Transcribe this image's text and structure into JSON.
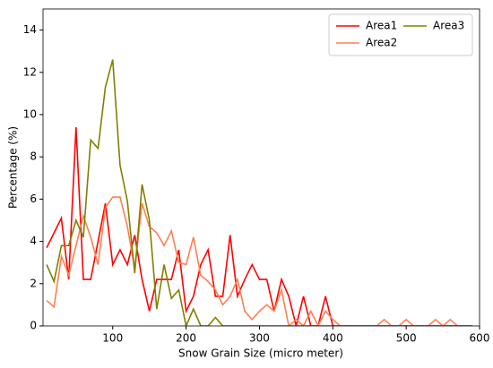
{
  "chart_data": {
    "type": "line",
    "xlabel": "Snow Grain Size (micro meter)",
    "ylabel": "Percentage (%)",
    "x": [
      10,
      20,
      30,
      40,
      50,
      60,
      70,
      80,
      90,
      100,
      110,
      120,
      130,
      140,
      150,
      160,
      170,
      180,
      190,
      200,
      210,
      220,
      230,
      240,
      250,
      260,
      270,
      280,
      290,
      300,
      310,
      320,
      330,
      340,
      350,
      360,
      370,
      380,
      390,
      400,
      410,
      420,
      430,
      440,
      450,
      460,
      470,
      480,
      490,
      500,
      510,
      520,
      530,
      540,
      550,
      560,
      570,
      580,
      590
    ],
    "series": [
      {
        "name": "Area1",
        "color": "#ff0000",
        "values": [
          3.7,
          4.4,
          5.1,
          2.2,
          9.4,
          2.2,
          2.2,
          4.0,
          5.8,
          2.9,
          3.6,
          2.9,
          4.3,
          2.2,
          0.7,
          2.2,
          2.2,
          2.2,
          3.6,
          0.7,
          1.4,
          2.9,
          3.6,
          1.4,
          1.4,
          4.3,
          1.4,
          2.2,
          2.9,
          2.2,
          2.2,
          0.7,
          2.2,
          1.4,
          0,
          1.4,
          0,
          0,
          1.4,
          0,
          0,
          0,
          0,
          0,
          0,
          0,
          0,
          0,
          0,
          0,
          0,
          0,
          0,
          0,
          0,
          0,
          0,
          0,
          0
        ]
      },
      {
        "name": "Area2",
        "color": "#ff7f50",
        "values": [
          1.2,
          0.9,
          3.3,
          2.4,
          3.8,
          5.2,
          4.2,
          2.9,
          5.6,
          6.1,
          6.1,
          4.7,
          2.7,
          5.8,
          4.7,
          4.4,
          3.8,
          4.5,
          3.0,
          2.9,
          4.2,
          2.4,
          2.1,
          1.7,
          1.0,
          1.4,
          2.2,
          0.7,
          0.3,
          0.7,
          1.0,
          0.7,
          1.7,
          0,
          0.3,
          0,
          0.7,
          0,
          0.7,
          0.3,
          0,
          0,
          0,
          0,
          0,
          0,
          0.3,
          0,
          0,
          0.3,
          0,
          0,
          0,
          0.3,
          0,
          0.3,
          0,
          0,
          0
        ]
      },
      {
        "name": "Area3",
        "color": "#808000",
        "values": [
          2.9,
          2.1,
          3.8,
          3.8,
          5.0,
          4.2,
          8.8,
          8.4,
          11.3,
          12.6,
          7.6,
          5.9,
          2.5,
          6.7,
          5.0,
          0.8,
          2.9,
          1.3,
          1.7,
          0,
          0.8,
          0,
          0,
          0.4,
          0,
          0,
          0,
          0,
          0,
          0,
          0,
          0,
          0,
          0,
          0,
          0,
          0,
          0,
          0,
          0,
          0,
          0,
          0,
          0,
          0,
          0,
          0,
          0,
          0,
          0,
          0,
          0,
          0,
          0,
          0,
          0,
          0,
          0,
          0
        ]
      }
    ],
    "xlim": [
      5,
      600
    ],
    "xticks": [
      100,
      200,
      300,
      400,
      500,
      600
    ],
    "ylim": [
      0,
      15
    ],
    "yticks": [
      0,
      2,
      4,
      6,
      8,
      10,
      12,
      14
    ],
    "legend": "upper right",
    "legend_columns": 2
  }
}
